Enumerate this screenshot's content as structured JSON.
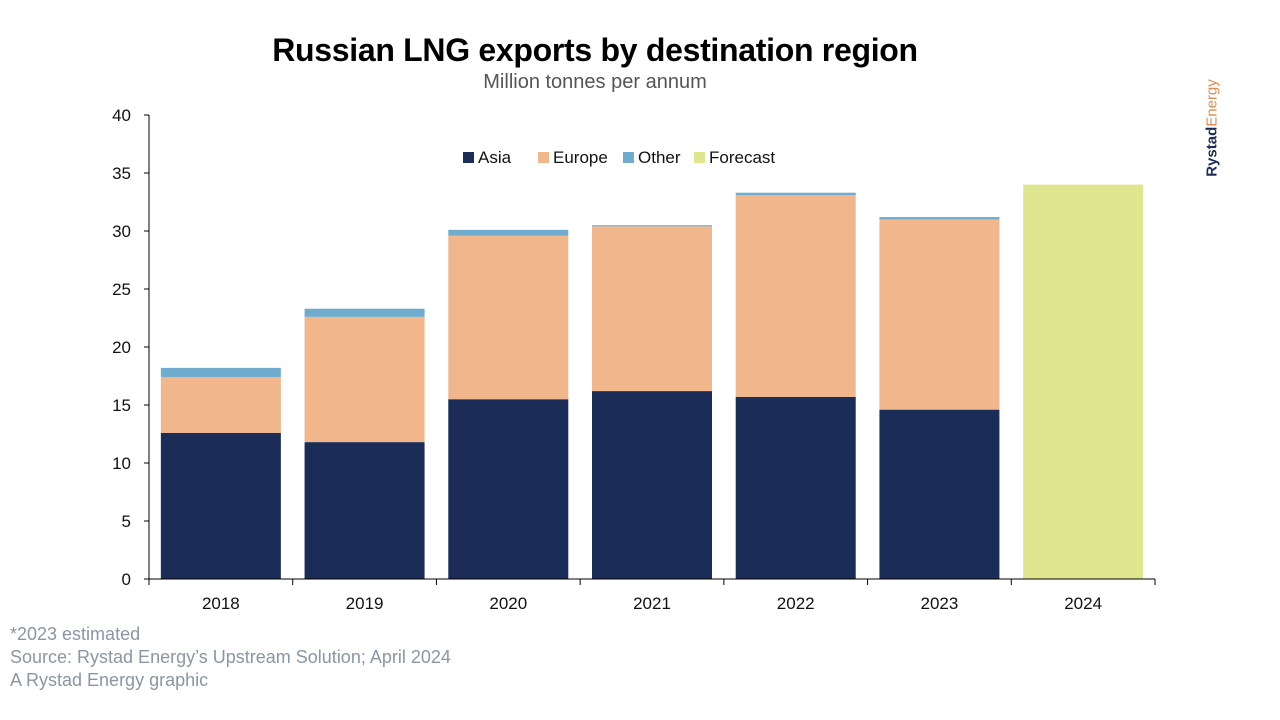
{
  "chart_data": {
    "type": "bar",
    "stacked": true,
    "title": "Russian LNG exports by destination region",
    "subtitle": "Million tonnes per annum",
    "xlabel": "",
    "ylabel": "",
    "ylim": [
      0,
      40
    ],
    "yticks": [
      0,
      5,
      10,
      15,
      20,
      25,
      30,
      35,
      40
    ],
    "categories": [
      "2018",
      "2019",
      "2020",
      "2021",
      "2022",
      "2023",
      "2024"
    ],
    "series": [
      {
        "name": "Asia",
        "color": "#1b2c57",
        "values": [
          12.6,
          11.8,
          15.5,
          16.2,
          15.7,
          14.6,
          null
        ]
      },
      {
        "name": "Europe",
        "color": "#f2b68c",
        "values": [
          4.8,
          10.8,
          14.1,
          14.2,
          17.4,
          16.4,
          null
        ]
      },
      {
        "name": "Other",
        "color": "#6faccd",
        "values": [
          0.8,
          0.7,
          0.5,
          0.1,
          0.2,
          0.2,
          null
        ]
      },
      {
        "name": "Forecast",
        "color": "#dfe690",
        "values": [
          null,
          null,
          null,
          null,
          null,
          null,
          34.0
        ]
      }
    ],
    "legend_position": "top-center",
    "grid": false
  },
  "footnotes": {
    "estimate": "*2023 estimated",
    "source": "Source: Rystad Energy’s Upstream Solution; April 2024",
    "credit": "A Rystad Energy graphic"
  },
  "brand": {
    "part1": "Rystad",
    "part2": "Energy"
  }
}
